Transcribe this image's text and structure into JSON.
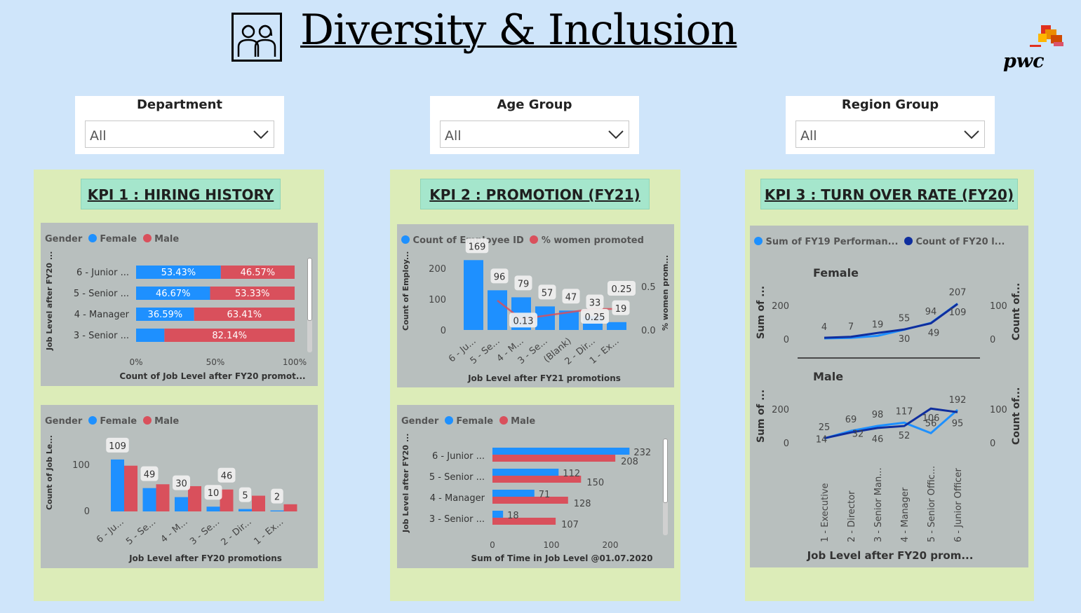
{
  "header": {
    "title": "Diversity & Inclusion",
    "logo_text": "pwc"
  },
  "slicers": [
    {
      "label": "Department",
      "value": "All"
    },
    {
      "label": "Age Group",
      "value": "All"
    },
    {
      "label": "Region Group",
      "value": "All"
    }
  ],
  "kpi1": {
    "title": "KPI 1 : HIRING HISTORY",
    "chart1": {
      "legend_title": "Gender",
      "legend": [
        "Female",
        "Male"
      ],
      "ylabel": "Job Level after FY20 ...",
      "xlabel": "Count of Job Level after FY20 promot...",
      "xticks": [
        "0%",
        "50%",
        "100%"
      ]
    },
    "chart2": {
      "legend_title": "Gender",
      "legend": [
        "Female",
        "Male"
      ],
      "ylabel": "Count of Job Le...",
      "xlabel": "Job Level after FY20 promotions",
      "yticks": [
        "100",
        "0"
      ]
    }
  },
  "kpi2": {
    "title": "KPI 2 : PROMOTION (FY21)",
    "chart1": {
      "legend": [
        "Count of Employee ID",
        "% women promoted"
      ],
      "ylabel": "Count of Employ...",
      "y2label": "% women prom...",
      "xlabel": "Job Level after FY21 promotions",
      "yticks": [
        "200",
        "100",
        "0"
      ],
      "y2ticks": [
        "0.5",
        "0.0"
      ]
    },
    "chart2": {
      "legend_title": "Gender",
      "legend": [
        "Female",
        "Male"
      ],
      "ylabel": "Job Level after FY20 ...",
      "xlabel": "Sum of Time in Job Level @01.07.2020",
      "xticks": [
        "0",
        "100",
        "200"
      ]
    }
  },
  "kpi3": {
    "title": "KPI 3 : TURN OVER RATE (FY20)",
    "legend": [
      "Sum of FY19 Performan...",
      "Count of FY20 l..."
    ],
    "female_label": "Female",
    "male_label": "Male",
    "ylabel": "Sum of ...",
    "y2label": "Count of...",
    "yticks": [
      "200",
      "0"
    ],
    "y2ticks": [
      "100",
      "0"
    ],
    "xlabel": "Job Level after FY20 prom..."
  },
  "colors": {
    "female": "#1e90ff",
    "male": "#d9505c",
    "line": "#0f2e9e",
    "panel": "#dcecb8",
    "kpi_title": "#a5e6cc",
    "visual": "#b8bfbe"
  },
  "chart_data": [
    {
      "type": "bar",
      "stacked_percent": true,
      "orientation": "horizontal",
      "categories": [
        "6 - Junior ...",
        "5 - Senior ...",
        "4 - Manager",
        "3 - Senior ..."
      ],
      "series": [
        {
          "name": "Female",
          "values": [
            53.43,
            46.67,
            36.59,
            17.86
          ],
          "labels": [
            "53.43%",
            "46.67%",
            "36.59%",
            ""
          ]
        },
        {
          "name": "Male",
          "values": [
            46.57,
            53.33,
            63.41,
            82.14
          ],
          "labels": [
            "46.57%",
            "53.33%",
            "63.41%",
            "82.14%"
          ]
        }
      ]
    },
    {
      "type": "bar",
      "categories": [
        "6 - Ju...",
        "5 - Se...",
        "4 - M...",
        "3 - Se...",
        "2 - Dir...",
        "1 - Ex..."
      ],
      "series": [
        {
          "name": "Female",
          "values": [
            109,
            49,
            30,
            10,
            5,
            2
          ]
        },
        {
          "name": "Male",
          "values": [
            96,
            57,
            53,
            46,
            33,
            15
          ]
        }
      ],
      "labels": [
        "109",
        "49",
        "30",
        "10",
        "46",
        "5",
        "2"
      ]
    },
    {
      "type": "bar",
      "combo_line": true,
      "categories": [
        "6 - Ju...",
        "5 - Se...",
        "4 - M...",
        "3 - Se...",
        "(Blank)",
        "2 - Dir...",
        "1 - Ex..."
      ],
      "bars": {
        "name": "Count of Employee ID",
        "values": [
          169,
          96,
          79,
          57,
          47,
          33,
          19
        ]
      },
      "line": {
        "name": "% women promoted",
        "values": [
          null,
          0.35,
          0.13,
          0.17,
          null,
          0.25,
          0.25
        ]
      },
      "line_labels": [
        "0.13",
        "0.25",
        "0.25"
      ]
    },
    {
      "type": "bar",
      "orientation": "horizontal",
      "categories": [
        "6 - Junior ...",
        "5 - Senior ...",
        "4 - Manager",
        "3 - Senior ..."
      ],
      "series": [
        {
          "name": "Female",
          "values": [
            232,
            112,
            71,
            18
          ]
        },
        {
          "name": "Male",
          "values": [
            208,
            150,
            128,
            107
          ]
        }
      ]
    },
    {
      "type": "line",
      "panel": "Female",
      "categories": [
        "1 - Executive",
        "2 - Director",
        "3 - Senior Man...",
        "4 - Manager",
        "5 - Senior Offic...",
        "6 - Junior Officer"
      ],
      "series": [
        {
          "name": "Sum of FY19 Performan...",
          "values": [
            4,
            7,
            19,
            55,
            94,
            207
          ]
        },
        {
          "name": "Count of FY20 l...",
          "values": [
            4,
            7,
            19,
            30,
            49,
            109
          ]
        }
      ]
    },
    {
      "type": "line",
      "panel": "Male",
      "categories": [
        "1 - Executive",
        "2 - Director",
        "3 - Senior Man...",
        "4 - Manager",
        "5 - Senior Offic...",
        "6 - Junior Officer"
      ],
      "series": [
        {
          "name": "Sum of FY19 Performan...",
          "values": [
            25,
            69,
            98,
            117,
            56,
            192
          ]
        },
        {
          "name": "Count of FY20 l...",
          "values": [
            14,
            32,
            46,
            52,
            106,
            95
          ]
        }
      ]
    }
  ]
}
